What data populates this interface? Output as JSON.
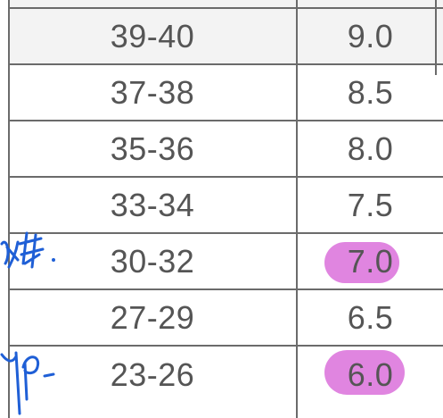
{
  "table": {
    "rows": [
      {
        "range": "39-40",
        "score": "9.0",
        "highlighted": false
      },
      {
        "range": "37-38",
        "score": "8.5",
        "highlighted": false
      },
      {
        "range": "35-36",
        "score": "8.0",
        "highlighted": false
      },
      {
        "range": "33-34",
        "score": "7.5",
        "highlighted": false
      },
      {
        "range": "30-32",
        "score": "7.0",
        "highlighted": true
      },
      {
        "range": "27-29",
        "score": "6.5",
        "highlighted": false
      },
      {
        "range": "23-26",
        "score": "6.0",
        "highlighted": true
      }
    ]
  },
  "colors": {
    "text": "#555555",
    "grid": "#6b6b6b",
    "highlight": "#d65cd6",
    "ink": "#1f5fd6"
  }
}
